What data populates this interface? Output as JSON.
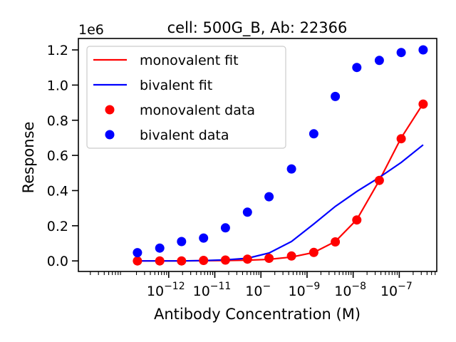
{
  "chart_data": {
    "type": "scatter",
    "title": "cell: 500G_B, Ab: 22366",
    "xlabel": "Antibody Concentration (M)",
    "ylabel": "Response",
    "y_offset_label": "1e6",
    "x_scale": "log",
    "xlim": [
      1.1e-14,
      6.5e-07
    ],
    "ylim": [
      -60000,
      1265000
    ],
    "x_ticks": [
      {
        "value": 1e-12,
        "label": "10−12"
      },
      {
        "value": 1e-11,
        "label": "10−11"
      },
      {
        "value": 1e-10,
        "label": "10−10"
      },
      {
        "value": 1e-09,
        "label": "10−9"
      },
      {
        "value": 1e-08,
        "label": "10−8"
      },
      {
        "value": 1e-07,
        "label": "10−7"
      }
    ],
    "y_ticks": [
      {
        "value": 0,
        "label": "0.0"
      },
      {
        "value": 200000,
        "label": "0.2"
      },
      {
        "value": 400000,
        "label": "0.4"
      },
      {
        "value": 600000,
        "label": "0.6"
      },
      {
        "value": 800000,
        "label": "0.8"
      },
      {
        "value": 1000000,
        "label": "1.0"
      },
      {
        "value": 1200000,
        "label": "1.2"
      }
    ],
    "grid": false,
    "legend_position": "upper-left",
    "legend": [
      {
        "kind": "line",
        "label": "monovalent fit",
        "color": "#ff0000"
      },
      {
        "kind": "line",
        "label": "bivalent fit",
        "color": "#0000ff"
      },
      {
        "kind": "marker",
        "label": "monovalent data",
        "color": "#ff0000"
      },
      {
        "kind": "marker",
        "label": "bivalent data",
        "color": "#0000ff"
      }
    ],
    "x": [
      2.1e-13,
      6.4e-13,
      1.9e-12,
      5.7e-12,
      1.7e-11,
      5.1e-11,
      1.5e-10,
      4.6e-10,
      1.4e-09,
      4.1e-09,
      1.2e-08,
      3.7e-08,
      1.1e-07,
      3.3e-07
    ],
    "series": [
      {
        "name": "monovalent data",
        "kind": "scatter",
        "color": "#ff0000",
        "y": [
          0,
          0,
          0,
          3000,
          5000,
          10000,
          15000,
          28000,
          48000,
          108000,
          233000,
          458000,
          695000,
          892000
        ]
      },
      {
        "name": "bivalent data",
        "kind": "scatter",
        "color": "#0000ff",
        "y": [
          47000,
          73000,
          110000,
          130000,
          188000,
          277000,
          365000,
          523000,
          723000,
          935000,
          1100000,
          1140000,
          1185000,
          1200000
        ]
      },
      {
        "name": "monovalent fit",
        "kind": "line",
        "color": "#ff0000",
        "y": [
          0,
          0,
          0,
          1000,
          2000,
          4000,
          9000,
          22000,
          48000,
          110000,
          235000,
          458000,
          700000,
          895000
        ]
      },
      {
        "name": "bivalent fit",
        "kind": "line",
        "color": "#0000ff",
        "y": [
          0,
          0,
          0,
          2000,
          6000,
          15000,
          45000,
          110000,
          210000,
          310000,
          395000,
          475000,
          560000,
          660000
        ]
      }
    ]
  }
}
